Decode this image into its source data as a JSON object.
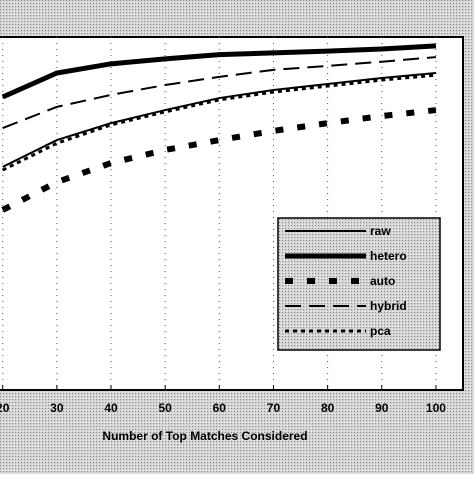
{
  "chart_data": {
    "type": "line",
    "xlabel": "Number of Top Matches Considered",
    "x": [
      20,
      30,
      40,
      50,
      60,
      70,
      80,
      90,
      100
    ],
    "xlim": [
      19.5,
      105
    ],
    "xticks": [
      20,
      30,
      40,
      50,
      60,
      70,
      80,
      90,
      100
    ],
    "ylim": [
      0,
      100
    ],
    "grid": true,
    "legend": "lower right",
    "series": [
      {
        "name": "raw",
        "color": "#000000",
        "width": 2,
        "dash": "none",
        "values": [
          63.2,
          70.8,
          75.6,
          79.3,
          82.7,
          85.0,
          86.7,
          88.4,
          89.8
        ]
      },
      {
        "name": "hetero",
        "color": "#000000",
        "width": 5,
        "dash": "none",
        "values": [
          83.0,
          89.8,
          92.4,
          93.8,
          95.0,
          95.5,
          96.0,
          96.6,
          97.5
        ]
      },
      {
        "name": "auto",
        "color": "#000000",
        "width": 6,
        "dash": "8 14",
        "values": [
          51.0,
          58.9,
          64.3,
          68.0,
          70.8,
          73.4,
          75.6,
          77.6,
          79.3
        ]
      },
      {
        "name": "hybrid",
        "color": "#000000",
        "width": 2,
        "dash": "16 8",
        "values": [
          74.2,
          80.2,
          83.6,
          86.4,
          88.7,
          90.7,
          91.8,
          93.0,
          94.3
        ]
      },
      {
        "name": "pca",
        "color": "#000000",
        "width": 3,
        "dash": "4 4",
        "values": [
          62.3,
          69.9,
          75.1,
          78.8,
          82.2,
          84.4,
          86.1,
          87.8,
          89.2
        ]
      }
    ]
  }
}
